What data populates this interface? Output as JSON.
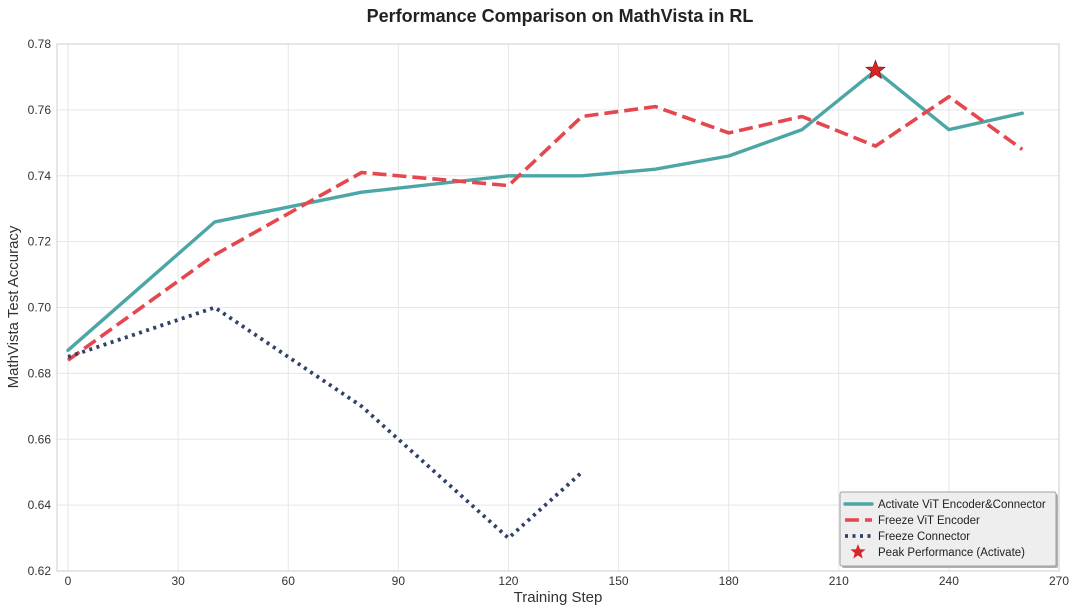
{
  "chart_data": {
    "type": "line",
    "title": "Performance Comparison on MathVista in RL",
    "xlabel": "Training Step",
    "ylabel": "MathVista Test Accuracy",
    "xlim": [
      -3,
      270
    ],
    "ylim": [
      0.62,
      0.78
    ],
    "xticks": [
      "0",
      "30",
      "60",
      "90",
      "120",
      "150",
      "180",
      "210",
      "240",
      "270"
    ],
    "xtick_values": [
      0,
      30,
      60,
      90,
      120,
      150,
      180,
      210,
      240,
      270
    ],
    "yticks": [
      "0.62",
      "0.64",
      "0.66",
      "0.68",
      "0.70",
      "0.72",
      "0.74",
      "0.76",
      "0.78"
    ],
    "ytick_values": [
      0.62,
      0.64,
      0.66,
      0.68,
      0.7,
      0.72,
      0.74,
      0.76,
      0.78
    ],
    "grid": true,
    "legend_position": "bottom-right",
    "series": [
      {
        "name": "Activate ViT Encoder&Connector",
        "style": "solid",
        "color": "#4da6a6",
        "x": [
          0,
          40,
          80,
          120,
          140,
          160,
          180,
          200,
          220,
          240,
          260
        ],
        "y": [
          0.687,
          0.726,
          0.735,
          0.74,
          0.74,
          0.742,
          0.746,
          0.754,
          0.772,
          0.754,
          0.759
        ]
      },
      {
        "name": "Freeze ViT Encoder",
        "style": "dashed",
        "color": "#e5474f",
        "x": [
          0,
          40,
          80,
          120,
          140,
          160,
          180,
          200,
          220,
          240,
          260
        ],
        "y": [
          0.684,
          0.716,
          0.741,
          0.737,
          0.758,
          0.761,
          0.753,
          0.758,
          0.749,
          0.764,
          0.748
        ]
      },
      {
        "name": "Freeze Connector",
        "style": "dotted",
        "color": "#2f4268",
        "x": [
          0,
          40,
          80,
          120,
          140
        ],
        "y": [
          0.685,
          0.7,
          0.67,
          0.63,
          0.65
        ]
      }
    ],
    "peak": {
      "name": "Peak Performance (Activate)",
      "x": 220,
      "y": 0.772,
      "marker": "star",
      "color": "#d62728"
    }
  }
}
